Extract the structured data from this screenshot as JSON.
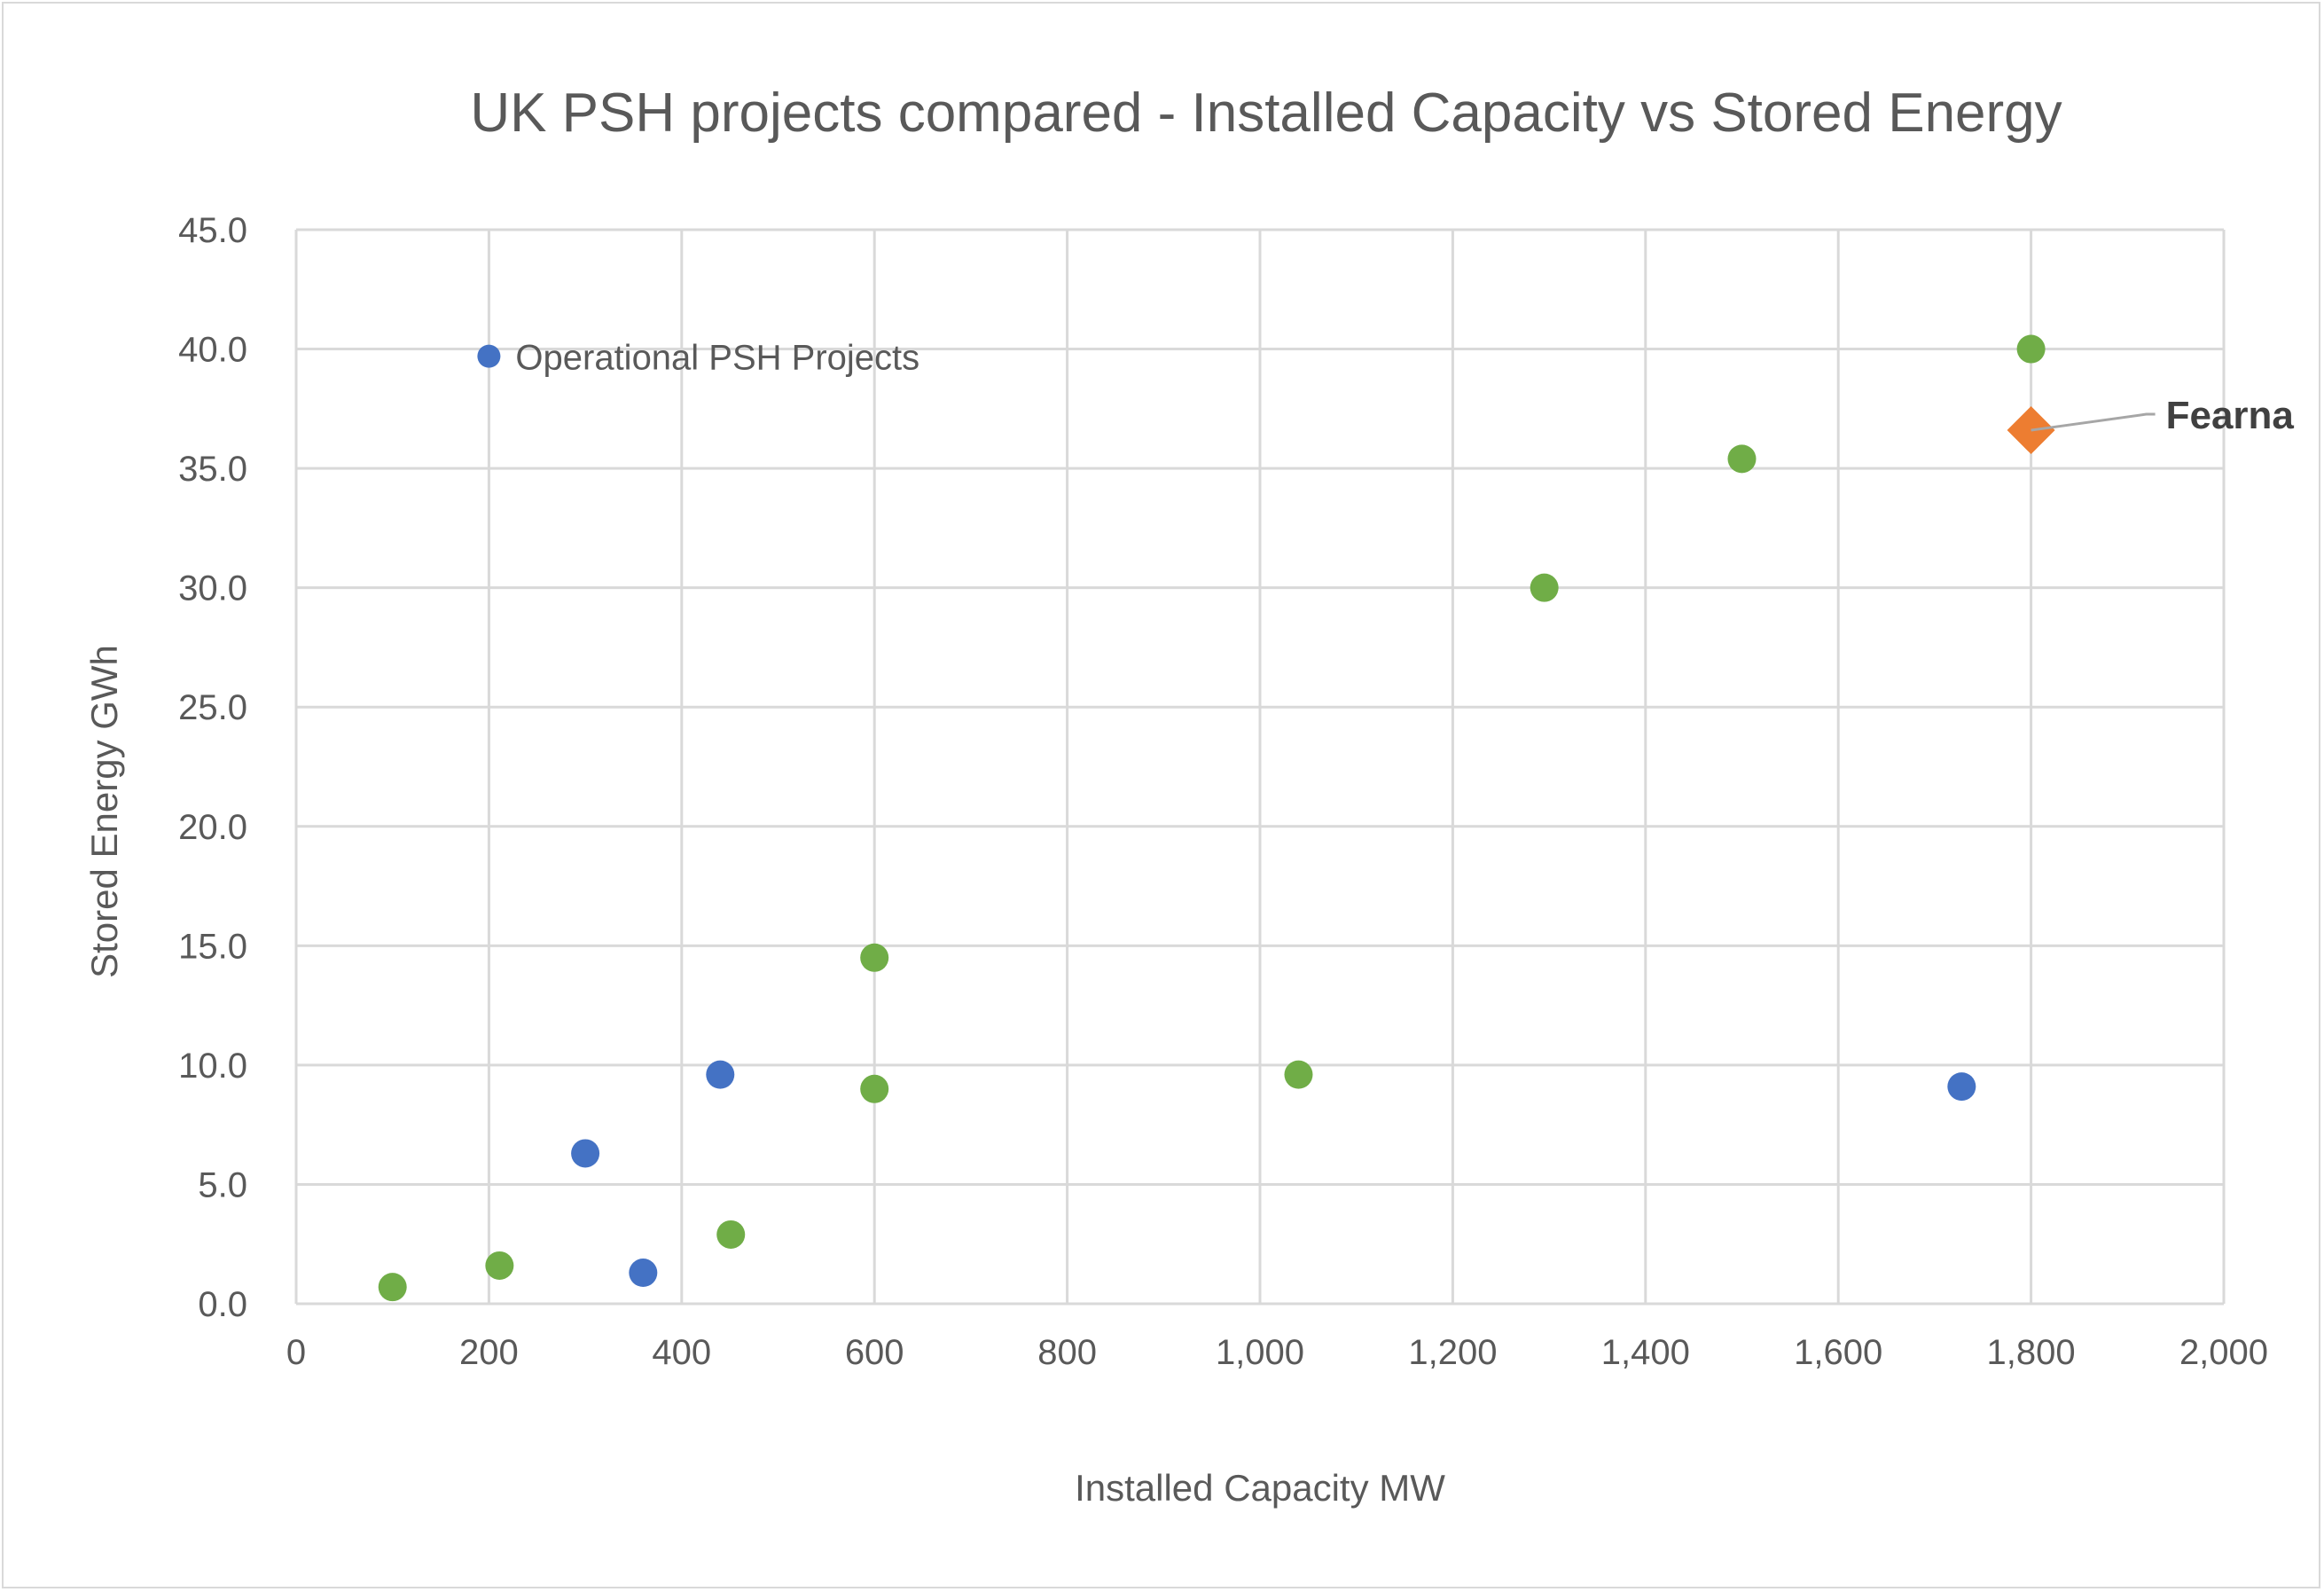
{
  "chart_data": {
    "type": "scatter",
    "title": "UK PSH projects compared - Installed Capacity vs Stored Energy",
    "xlabel": "Installed Capacity MW",
    "ylabel": "Stored Energy GWh",
    "xlim": [
      0,
      2000
    ],
    "ylim": [
      0,
      45
    ],
    "xticks": [
      0,
      200,
      400,
      600,
      800,
      1000,
      1200,
      1400,
      1600,
      1800,
      2000
    ],
    "xtick_labels": [
      "0",
      "200",
      "400",
      "600",
      "800",
      "1,000",
      "1,200",
      "1,400",
      "1,600",
      "1,800",
      "2,000"
    ],
    "yticks": [
      0,
      5,
      10,
      15,
      20,
      25,
      30,
      35,
      40,
      45
    ],
    "ytick_labels": [
      "0.0",
      "5.0",
      "10.0",
      "15.0",
      "20.0",
      "25.0",
      "30.0",
      "35.0",
      "40.0",
      "45.0"
    ],
    "grid": true,
    "series": [
      {
        "color": "#4472c4",
        "marker": "circle",
        "points": [
          [
            300,
            6.3
          ],
          [
            360,
            1.3
          ],
          [
            440,
            9.6
          ],
          [
            1728,
            9.1
          ]
        ]
      },
      {
        "color": "#70ad47",
        "marker": "circle",
        "points": [
          [
            100,
            0.7
          ],
          [
            211,
            1.6
          ],
          [
            451,
            2.9
          ],
          [
            600,
            9.0
          ],
          [
            600,
            14.5
          ],
          [
            1040,
            9.6
          ],
          [
            1295,
            30.0
          ],
          [
            1500,
            35.4
          ],
          [
            1800,
            40.0
          ]
        ]
      },
      {
        "color": "#ed7d31",
        "marker": "diamond",
        "points": [
          [
            1800,
            36.6
          ]
        ],
        "label": "Fearna"
      }
    ],
    "annotation": {
      "text": "Operational PSH Projects",
      "color": "#4472c4",
      "point": [
        200,
        39.7
      ]
    }
  }
}
